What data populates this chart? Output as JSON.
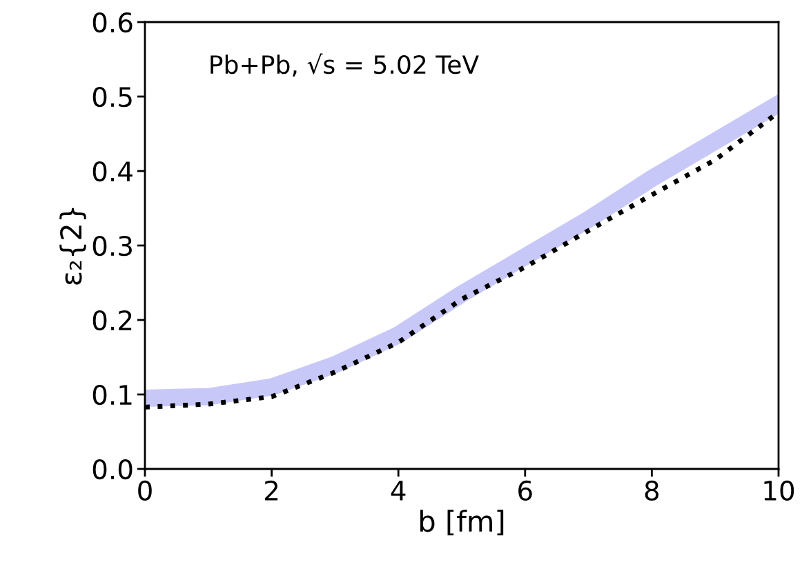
{
  "chart_data": {
    "type": "line",
    "xlabel": "b [fm]",
    "ylabel": "ε₂{2}",
    "annotations": [
      {
        "text": "Pb+Pb, √s = 5.02 TeV"
      }
    ],
    "x": [
      0,
      1,
      2,
      3,
      4,
      5,
      6,
      7,
      8,
      9,
      10
    ],
    "series": [
      {
        "color": "#c8c8f8",
        "line_style": "solid",
        "values": [
          0.095,
          0.097,
          0.11,
          0.14,
          0.18,
          0.235,
          0.285,
          0.335,
          0.39,
          0.44,
          0.49
        ]
      },
      {
        "type": "line",
        "color": "#000000",
        "line_style": "dotted",
        "values": [
          0.083,
          0.087,
          0.097,
          0.13,
          0.17,
          0.228,
          0.271,
          0.32,
          0.368,
          0.415,
          0.479
        ]
      }
    ],
    "xlim": [
      0,
      10
    ],
    "xticks": [
      0,
      2,
      4,
      6,
      8,
      10
    ],
    "ylim": [
      0,
      0.6
    ],
    "yticks": [
      {
        "value": 0,
        "label": "0.0"
      },
      0.1,
      0.2,
      0.3,
      0.4,
      0.5,
      0.6
    ],
    "grid": false,
    "legend": false
  }
}
